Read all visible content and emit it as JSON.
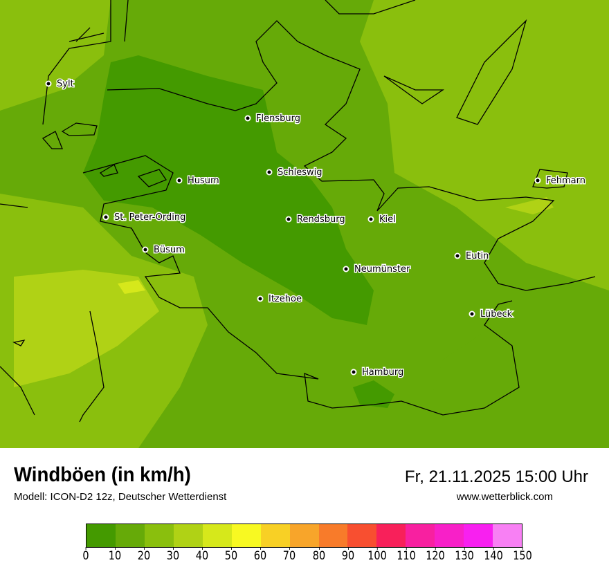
{
  "header": {
    "title": "Windböen (in km/h)",
    "subtitle": "Modell: ICON-D2 12z, Deutscher Wetterdienst",
    "datetime": "Fr, 21.11.2025 15:00 Uhr",
    "website": "www.wetterblick.com"
  },
  "legend": {
    "ticks": [
      "0",
      "10",
      "20",
      "30",
      "40",
      "50",
      "60",
      "70",
      "80",
      "90",
      "100",
      "110",
      "120",
      "130",
      "140",
      "150"
    ],
    "colors": [
      "#449a00",
      "#66aa08",
      "#8abf0d",
      "#b0d215",
      "#d6e81b",
      "#f8f922",
      "#f8d025",
      "#f8a52a",
      "#f87b2a",
      "#f84f30",
      "#f8205a",
      "#f820a0",
      "#f820c8",
      "#f820f0",
      "#f880f4"
    ]
  },
  "cities": [
    {
      "name": "Sylt"
    },
    {
      "name": "Flensburg"
    },
    {
      "name": "Schleswig"
    },
    {
      "name": "Husum"
    },
    {
      "name": "Fehmarn"
    },
    {
      "name": "St. Peter-Ording"
    },
    {
      "name": "Rendsburg"
    },
    {
      "name": "Kiel"
    },
    {
      "name": "Büsum"
    },
    {
      "name": "Eutin"
    },
    {
      "name": "Neumünster"
    },
    {
      "name": "Itzehoe"
    },
    {
      "name": "Lübeck"
    },
    {
      "name": "Hamburg"
    }
  ]
}
